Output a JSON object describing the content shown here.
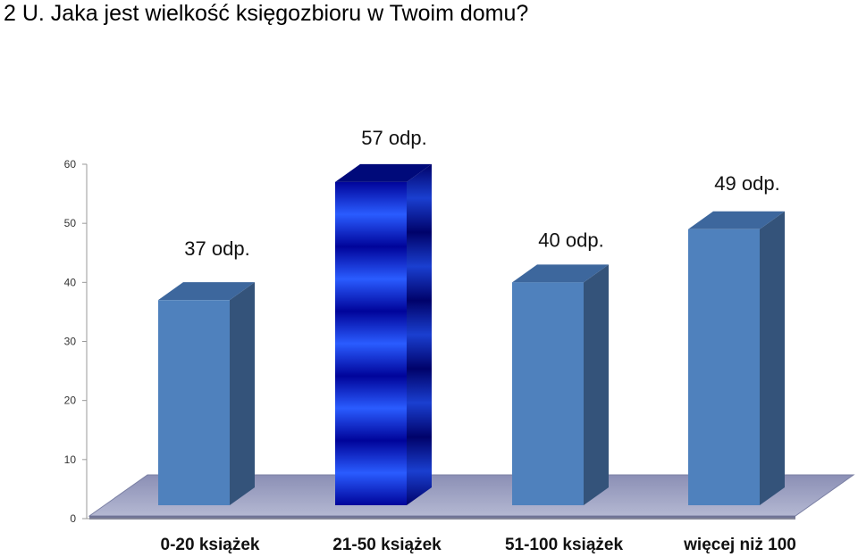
{
  "title": "2 U.  Jaka jest wielkość księgozbioru w Twoim domu?",
  "chart_data": {
    "type": "bar",
    "title": "2 U.  Jaka jest wielkość księgozbioru w Twoim domu?",
    "categories": [
      "0-20 książek",
      "21-50 książek",
      "51-100 książek",
      "więcej niż 100"
    ],
    "values": [
      37,
      57,
      40,
      49
    ],
    "data_labels": [
      "37 odp.",
      "57 odp.",
      "40 odp.",
      "49 odp."
    ],
    "y_ticks": [
      "0",
      "10",
      "20",
      "30",
      "40",
      "50",
      "60"
    ],
    "ylim": [
      0,
      60
    ],
    "xlabel": "",
    "ylabel": "",
    "grid": false,
    "legend": "none",
    "style": "3d",
    "colors": {
      "bar_front": "#4f81bd",
      "bar_top": "#3d679d",
      "bar_side": "#34537a",
      "highlight_front_light": "#2a5cff",
      "highlight_front_dark": "#00049a",
      "floor": "#a3a8c8",
      "floor_edge": "#7a7fa3"
    },
    "highlight_index": 1
  }
}
